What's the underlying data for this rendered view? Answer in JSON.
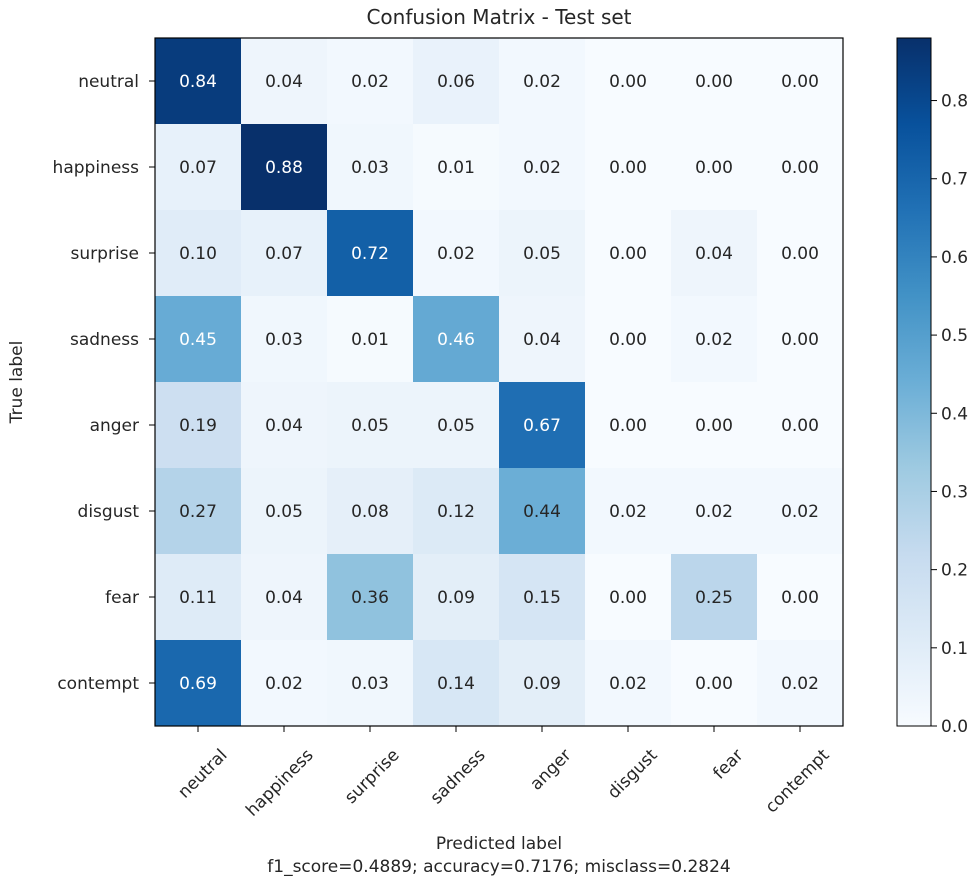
{
  "chart_data": {
    "type": "heatmap",
    "title": "Confusion Matrix - Test set",
    "xlabel": "Predicted label",
    "ylabel": "True label",
    "footer": "f1_score=0.4889; accuracy=0.7176; misclass=0.2824",
    "x_categories": [
      "neutral",
      "happiness",
      "surprise",
      "sadness",
      "anger",
      "disgust",
      "fear",
      "contempt"
    ],
    "y_categories": [
      "neutral",
      "happiness",
      "surprise",
      "sadness",
      "anger",
      "disgust",
      "fear",
      "contempt"
    ],
    "values": [
      [
        0.84,
        0.04,
        0.02,
        0.06,
        0.02,
        0.0,
        0.0,
        0.0
      ],
      [
        0.07,
        0.88,
        0.03,
        0.01,
        0.02,
        0.0,
        0.0,
        0.0
      ],
      [
        0.1,
        0.07,
        0.72,
        0.02,
        0.05,
        0.0,
        0.04,
        0.0
      ],
      [
        0.45,
        0.03,
        0.01,
        0.46,
        0.04,
        0.0,
        0.02,
        0.0
      ],
      [
        0.19,
        0.04,
        0.05,
        0.05,
        0.67,
        0.0,
        0.0,
        0.0
      ],
      [
        0.27,
        0.05,
        0.08,
        0.12,
        0.44,
        0.02,
        0.02,
        0.02
      ],
      [
        0.11,
        0.04,
        0.36,
        0.09,
        0.15,
        0.0,
        0.25,
        0.0
      ],
      [
        0.69,
        0.02,
        0.03,
        0.14,
        0.09,
        0.02,
        0.0,
        0.02
      ]
    ],
    "value_labels": [
      [
        "0.84",
        "0.04",
        "0.02",
        "0.06",
        "0.02",
        "0.00",
        "0.00",
        "0.00"
      ],
      [
        "0.07",
        "0.88",
        "0.03",
        "0.01",
        "0.02",
        "0.00",
        "0.00",
        "0.00"
      ],
      [
        "0.10",
        "0.07",
        "0.72",
        "0.02",
        "0.05",
        "0.00",
        "0.04",
        "0.00"
      ],
      [
        "0.45",
        "0.03",
        "0.01",
        "0.46",
        "0.04",
        "0.00",
        "0.02",
        "0.00"
      ],
      [
        "0.19",
        "0.04",
        "0.05",
        "0.05",
        "0.67",
        "0.00",
        "0.00",
        "0.00"
      ],
      [
        "0.27",
        "0.05",
        "0.08",
        "0.12",
        "0.44",
        "0.02",
        "0.02",
        "0.02"
      ],
      [
        "0.11",
        "0.04",
        "0.36",
        "0.09",
        "0.15",
        "0.00",
        "0.25",
        "0.00"
      ],
      [
        "0.69",
        "0.02",
        "0.03",
        "0.14",
        "0.09",
        "0.02",
        "0.00",
        "0.02"
      ]
    ],
    "colormap": "Blues",
    "vmin": 0.0,
    "vmax": 0.88,
    "colorbar_ticks": [
      0.0,
      0.1,
      0.2,
      0.3,
      0.4,
      0.5,
      0.6,
      0.7,
      0.8
    ],
    "colorbar_tick_labels": [
      "0.0",
      "0.1",
      "0.2",
      "0.3",
      "0.4",
      "0.5",
      "0.6",
      "0.7",
      "0.8"
    ],
    "text_color_dark": "#262626",
    "text_color_light": "#ffffff",
    "grid": false
  }
}
